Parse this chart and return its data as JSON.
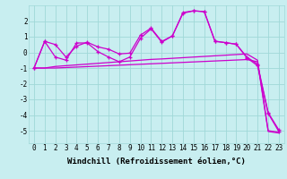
{
  "bg_color": "#c8eef0",
  "line_color": "#cc00cc",
  "grid_color": "#a0d8d8",
  "xlabel": "Windchill (Refroidissement éolien,°C)",
  "xlabel_fontsize": 6.5,
  "tick_fontsize": 5.5,
  "xlim": [
    -0.5,
    23.5
  ],
  "ylim": [
    -5.8,
    3.0
  ],
  "yticks": [
    -5,
    -4,
    -3,
    -2,
    -1,
    0,
    1,
    2
  ],
  "xticks": [
    0,
    1,
    2,
    3,
    4,
    5,
    6,
    7,
    8,
    9,
    10,
    11,
    12,
    13,
    14,
    15,
    16,
    17,
    18,
    19,
    20,
    21,
    22,
    23
  ],
  "s1": [
    -1.0,
    0.7,
    -0.3,
    -0.5,
    0.6,
    0.6,
    0.05,
    -0.3,
    -0.6,
    -0.3,
    0.9,
    1.5,
    0.65,
    1.05,
    2.5,
    2.65,
    2.6,
    0.7,
    0.62,
    0.52,
    -0.35,
    -0.85,
    -3.9,
    -5.05
  ],
  "s2": [
    -1.0,
    0.7,
    0.5,
    -0.3,
    0.4,
    0.65,
    0.35,
    0.2,
    -0.1,
    -0.05,
    1.1,
    1.55,
    0.7,
    1.05,
    2.55,
    2.65,
    2.6,
    0.72,
    0.62,
    0.52,
    -0.3,
    -0.75,
    -3.85,
    -4.95
  ],
  "s3": [
    -1.0,
    -1.0,
    -0.9,
    -0.85,
    -0.8,
    -0.75,
    -0.7,
    -0.65,
    -0.6,
    -0.55,
    -0.5,
    -0.45,
    -0.42,
    -0.38,
    -0.34,
    -0.3,
    -0.26,
    -0.22,
    -0.18,
    -0.14,
    -0.1,
    -0.5,
    -5.0,
    -5.1
  ],
  "s4": [
    -1.0,
    -1.0,
    -1.0,
    -0.97,
    -0.94,
    -0.91,
    -0.88,
    -0.85,
    -0.82,
    -0.79,
    -0.76,
    -0.73,
    -0.7,
    -0.67,
    -0.64,
    -0.61,
    -0.58,
    -0.55,
    -0.52,
    -0.49,
    -0.46,
    -0.6,
    -5.05,
    -5.15
  ]
}
